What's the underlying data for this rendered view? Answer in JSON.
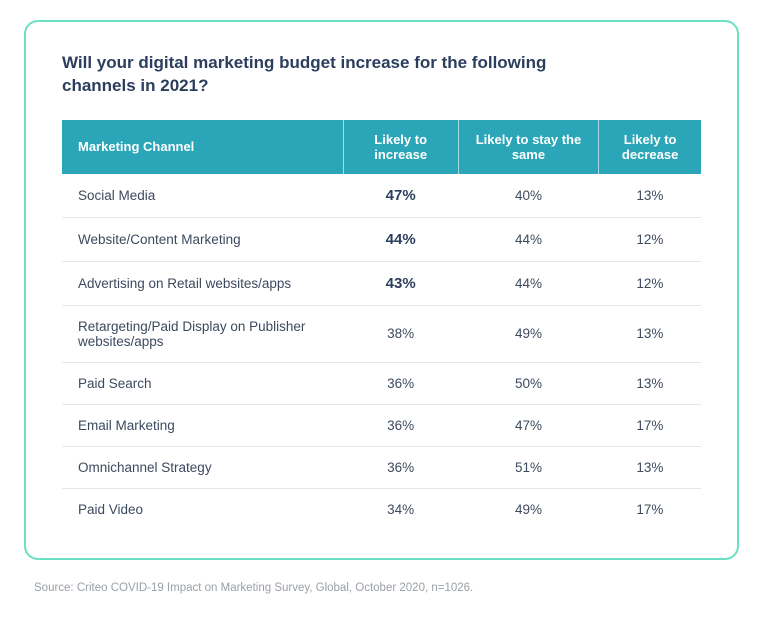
{
  "type": "table",
  "title": "Will your digital marketing budget increase for the following channels in 2021?",
  "columns": [
    "Marketing Channel",
    "Likely to increase",
    "Likely to stay the same",
    "Likely to decrease"
  ],
  "rows": [
    {
      "channel": "Social Media",
      "increase": "47%",
      "same": "40%",
      "decrease": "13%",
      "highlight_increase": true
    },
    {
      "channel": "Website/Content Marketing",
      "increase": "44%",
      "same": "44%",
      "decrease": "12%",
      "highlight_increase": true
    },
    {
      "channel": "Advertising on Retail websites/apps",
      "increase": "43%",
      "same": "44%",
      "decrease": "12%",
      "highlight_increase": true
    },
    {
      "channel": "Retargeting/Paid Display on Publisher websites/apps",
      "increase": "38%",
      "same": "49%",
      "decrease": "13%",
      "highlight_increase": false
    },
    {
      "channel": "Paid Search",
      "increase": "36%",
      "same": "50%",
      "decrease": "13%",
      "highlight_increase": false
    },
    {
      "channel": "Email Marketing",
      "increase": "36%",
      "same": "47%",
      "decrease": "17%",
      "highlight_increase": false
    },
    {
      "channel": "Omnichannel Strategy",
      "increase": "36%",
      "same": "51%",
      "decrease": "13%",
      "highlight_increase": false
    },
    {
      "channel": "Paid Video",
      "increase": "34%",
      "same": "49%",
      "decrease": "17%",
      "highlight_increase": false
    }
  ],
  "source_text": "Source: Criteo COVID-19 Impact on Marketing Survey, Global, October 2020, n=1026.",
  "colors": {
    "card_border": "#6be0c4",
    "title_color": "#2c3e5e",
    "header_bg": "#2aa6b8",
    "header_text": "#ffffff",
    "body_text": "#3c4a5e",
    "highlight_text": "#2c3e5e",
    "row_border": "#e3e7ec",
    "background": "#ffffff"
  },
  "fontsize": {
    "title": 17,
    "header": 13,
    "body": 13.5,
    "highlight": 15,
    "source": 11.5
  }
}
